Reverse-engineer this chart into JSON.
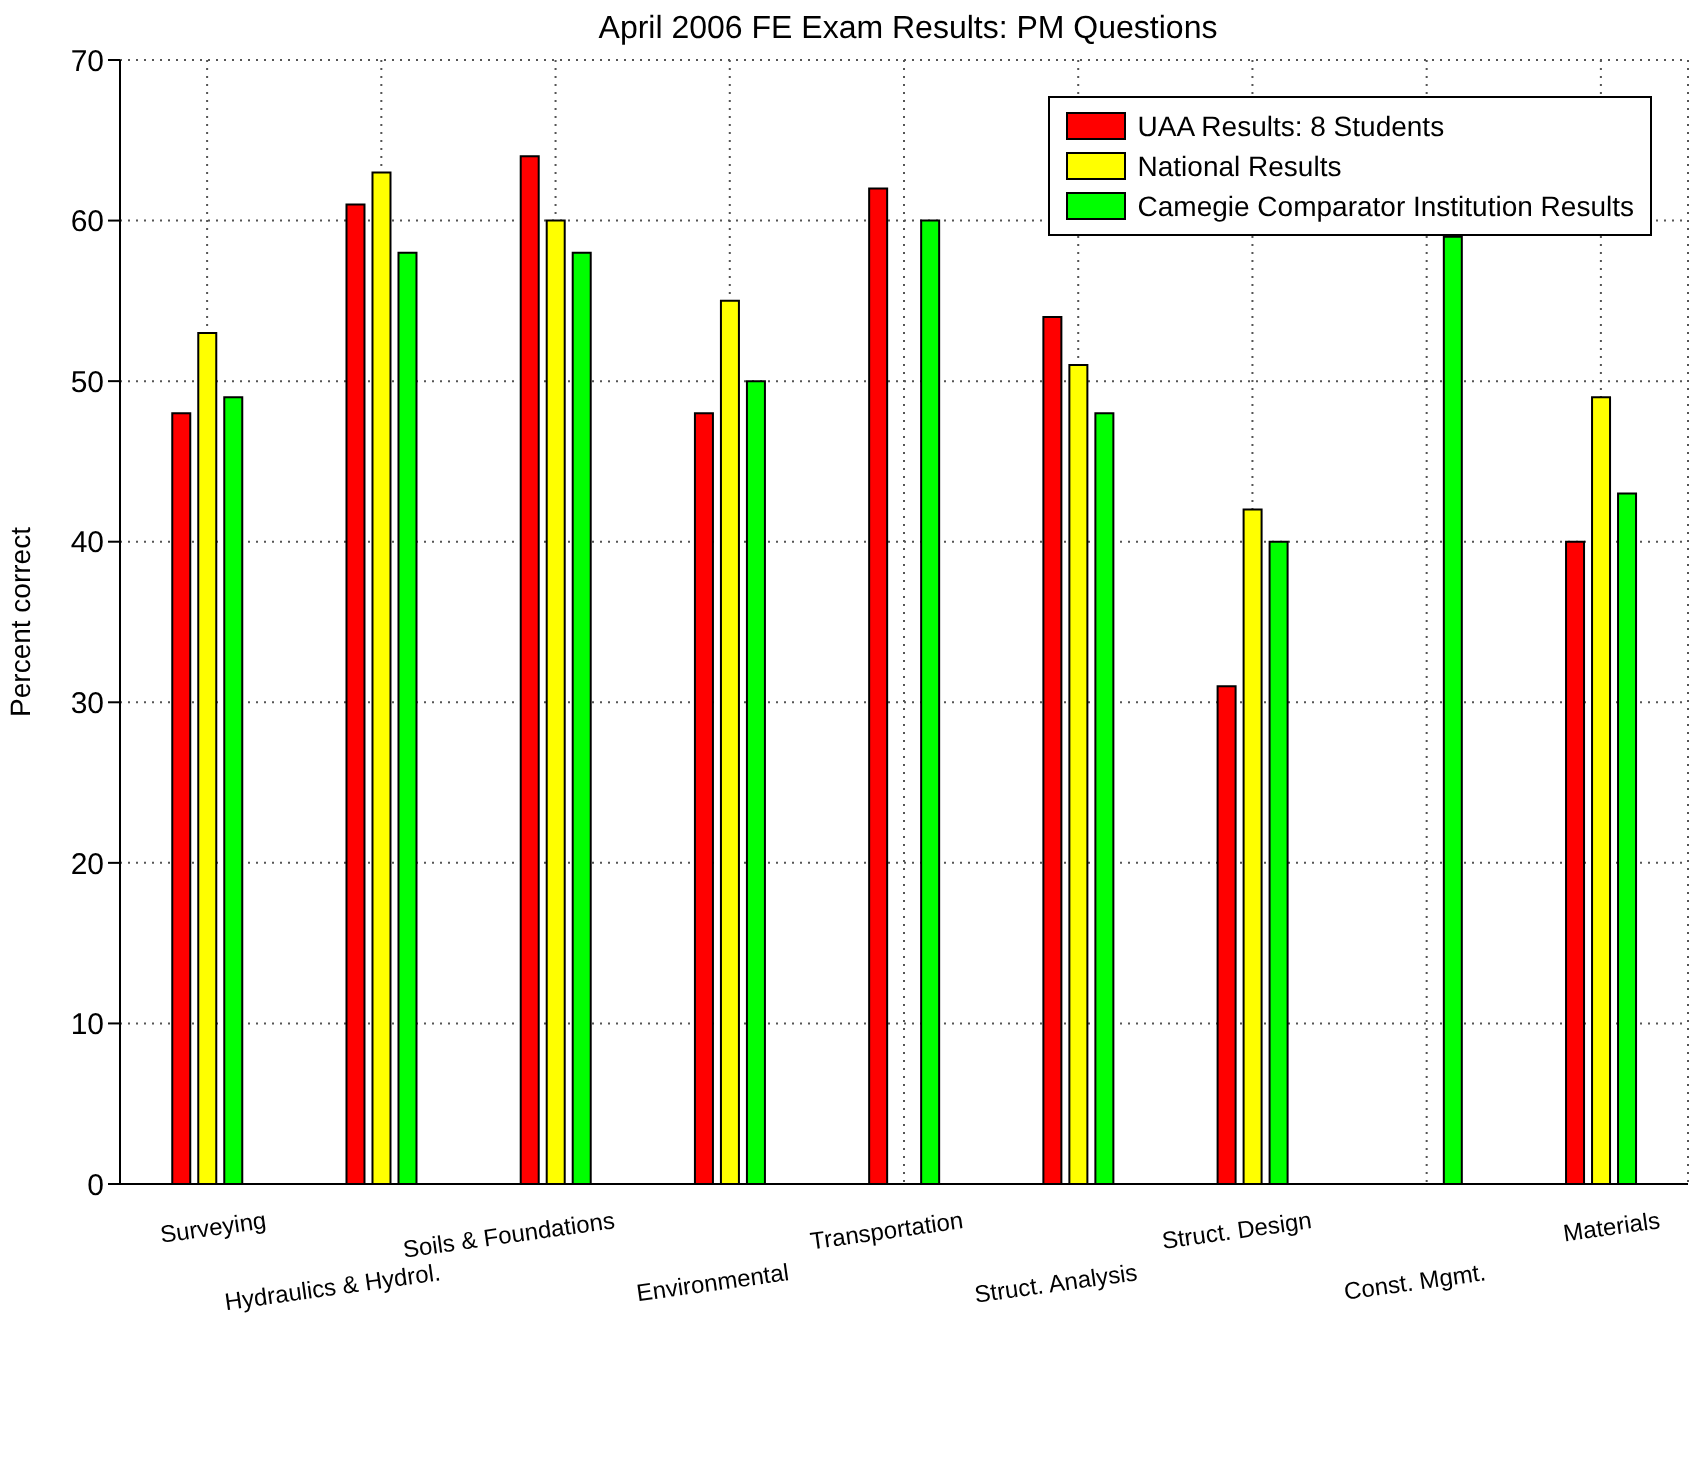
{
  "chart_data": {
    "type": "bar",
    "title": "April 2006 FE Exam Results: PM Questions",
    "ylabel": "Percent correct",
    "categories": [
      "Surveying",
      "Hydraulics & Hydrol.",
      "Soils & Foundations",
      "Environmental",
      "Transportation",
      "Struct. Analysis",
      "Struct. Design",
      "Const. Mgmt.",
      "Materials"
    ],
    "series": [
      {
        "name": "UAA Results: 8 Students",
        "color": "#ff0000",
        "values": [
          48,
          61,
          64,
          48,
          62,
          54,
          31,
          null,
          40
        ]
      },
      {
        "name": "National Results",
        "color": "#ffff00",
        "values": [
          53,
          63,
          60,
          55,
          null,
          51,
          42,
          null,
          49
        ]
      },
      {
        "name": "Camegie Comparator Institution Results",
        "color": "#00ff00",
        "values": [
          49,
          58,
          58,
          50,
          60,
          48,
          40,
          59,
          43
        ]
      }
    ],
    "ylim": [
      0,
      70
    ],
    "yticks": [
      0,
      10,
      20,
      30,
      40,
      50,
      60,
      70
    ],
    "grid": true,
    "legend": "top right"
  }
}
